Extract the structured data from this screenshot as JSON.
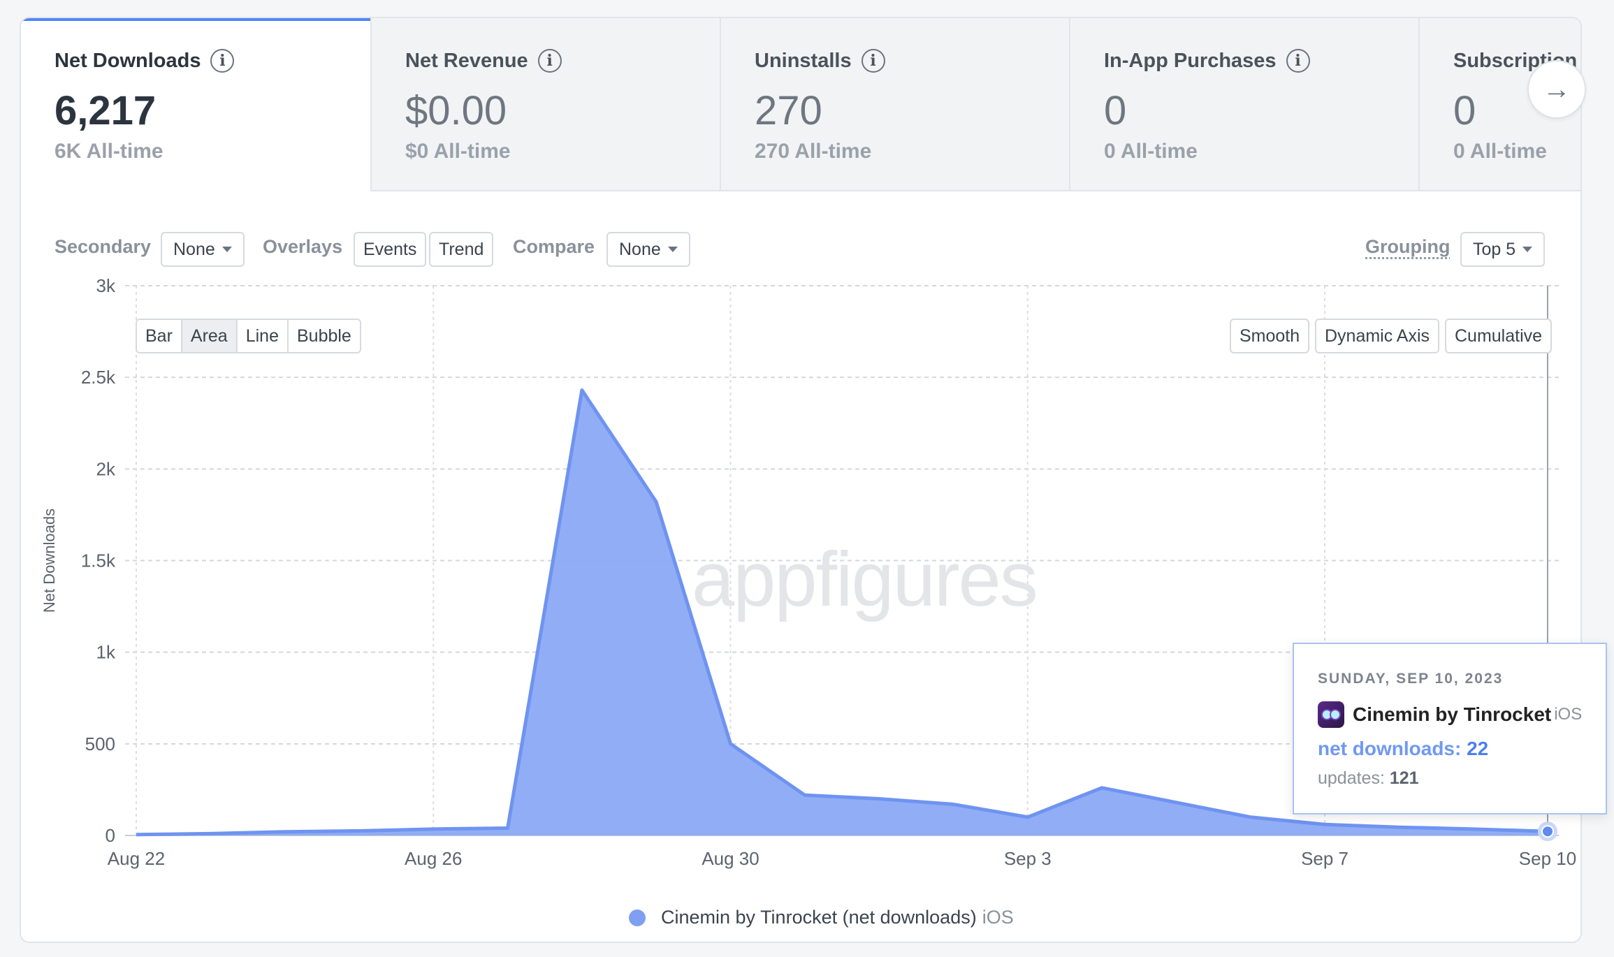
{
  "metrics": [
    {
      "title": "Net Downloads",
      "value": "6,217",
      "alltime": "6K All-time",
      "active": true
    },
    {
      "title": "Net Revenue",
      "value": "$0.00",
      "alltime": "$0 All-time"
    },
    {
      "title": "Uninstalls",
      "value": "270",
      "alltime": "270 All-time"
    },
    {
      "title": "In-App Purchases",
      "value": "0",
      "alltime": "0 All-time"
    },
    {
      "title": "Subscription P",
      "value": "0",
      "alltime": "0 All-time"
    }
  ],
  "toolbar": {
    "secondary_label": "Secondary",
    "secondary_value": "None",
    "overlays_label": "Overlays",
    "events_label": "Events",
    "trend_label": "Trend",
    "compare_label": "Compare",
    "compare_value": "None",
    "grouping_label": "Grouping",
    "grouping_value": "Top 5"
  },
  "chart_types": [
    "Bar",
    "Area",
    "Line",
    "Bubble"
  ],
  "chart_type_selected": "Area",
  "chart_options": [
    "Smooth",
    "Dynamic Axis",
    "Cumulative"
  ],
  "watermark": "appfigures",
  "chart_data": {
    "type": "area",
    "ylabel": "Net Downloads",
    "ylim": [
      0,
      3000
    ],
    "y_ticks": [
      0,
      500,
      1000,
      1500,
      2000,
      2500,
      3000
    ],
    "y_tick_labels": [
      "0",
      "500",
      "1k",
      "1.5k",
      "2k",
      "2.5k",
      "3k"
    ],
    "x_tick_labels": [
      "Aug 22",
      "Aug 26",
      "Aug 30",
      "Sep 3",
      "Sep 7",
      "Sep 10"
    ],
    "x_tick_days": [
      0,
      4,
      8,
      12,
      16,
      19
    ],
    "x_days": [
      0,
      1,
      2,
      3,
      4,
      5,
      6,
      7,
      8,
      9,
      10,
      11,
      12,
      13,
      14,
      15,
      16,
      17,
      18,
      19
    ],
    "series": [
      {
        "name": "Cinemin by Tinrocket (net downloads)",
        "platform": "iOS",
        "color": "#7e9ff2",
        "values": [
          5,
          10,
          20,
          25,
          35,
          40,
          2430,
          1820,
          500,
          220,
          200,
          170,
          100,
          260,
          180,
          100,
          60,
          45,
          35,
          22
        ]
      }
    ],
    "grid": true
  },
  "tooltip": {
    "date": "SUNDAY, SEP 10, 2023",
    "app_name": "Cinemin by Tinrocket",
    "platform": "iOS",
    "metric_label": "net downloads:",
    "metric_value": "22",
    "updates_label": "updates:",
    "updates_value": "121"
  },
  "legend": {
    "label": "Cinemin by Tinrocket (net downloads)",
    "platform": "iOS"
  },
  "colors": {
    "accent": "#4f86f7",
    "area_fill": "#8aa9f5",
    "area_stroke": "#6f93f0"
  }
}
